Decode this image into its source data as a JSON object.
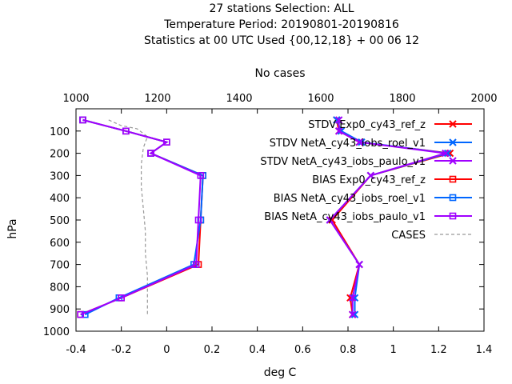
{
  "chart_data": {
    "type": "line",
    "title_lines": [
      "27 stations Selection: ALL",
      "Temperature  Period: 20190801-20190816",
      "Statistics at 00 UTC  Used {00,12,18} + 00 06 12"
    ],
    "xlabel": "deg C",
    "ylabel": "hPa",
    "x2label": "No cases",
    "xlim": [
      -0.4,
      1.4
    ],
    "x2lim": [
      1000,
      2000
    ],
    "ylim": [
      1000,
      0
    ],
    "xticks": [
      "-0.4",
      "-0.2",
      "0",
      "0.2",
      "0.4",
      "0.6",
      "0.8",
      "1",
      "1.2",
      "1.4"
    ],
    "x2ticks": [
      "1000",
      "1200",
      "1400",
      "1600",
      "1800",
      "2000"
    ],
    "yticks": [
      "100",
      "200",
      "300",
      "400",
      "500",
      "600",
      "700",
      "800",
      "900",
      "1000"
    ],
    "legend_position": "top-right",
    "series": [
      {
        "name": "STDV Exp0_cy43_ref_z",
        "color": "#ff0000",
        "marker": "x",
        "points": [
          [
            0.75,
            50
          ],
          [
            0.76,
            100
          ],
          [
            0.85,
            150
          ],
          [
            1.25,
            200
          ],
          [
            0.9,
            300
          ],
          [
            0.73,
            500
          ],
          [
            0.85,
            700
          ],
          [
            0.81,
            850
          ],
          [
            0.82,
            925
          ]
        ]
      },
      {
        "name": "STDV NetA_cy43_iobs_roel_v1",
        "color": "#0066ff",
        "marker": "x",
        "points": [
          [
            0.75,
            50
          ],
          [
            0.77,
            100
          ],
          [
            0.86,
            150
          ],
          [
            1.24,
            200
          ],
          [
            0.9,
            300
          ],
          [
            0.72,
            500
          ],
          [
            0.85,
            700
          ],
          [
            0.83,
            850
          ],
          [
            0.83,
            925
          ]
        ]
      },
      {
        "name": "STDV NetA_cy43_iobs_paulo_v1",
        "color": "#a000ff",
        "marker": "x",
        "points": [
          [
            0.76,
            50
          ],
          [
            0.76,
            100
          ],
          [
            0.85,
            150
          ],
          [
            1.23,
            200
          ],
          [
            0.9,
            300
          ],
          [
            0.72,
            500
          ],
          [
            0.85,
            700
          ],
          [
            0.82,
            850
          ],
          [
            0.82,
            925
          ]
        ]
      },
      {
        "name": "BIAS Exp0_cy43_ref_z",
        "color": "#ff0000",
        "marker": "square",
        "points": [
          [
            -0.37,
            50
          ],
          [
            -0.18,
            100
          ],
          [
            0.0,
            150
          ],
          [
            -0.07,
            200
          ],
          [
            0.16,
            300
          ],
          [
            0.15,
            500
          ],
          [
            0.14,
            700
          ],
          [
            -0.2,
            850
          ],
          [
            -0.38,
            925
          ]
        ]
      },
      {
        "name": "BIAS NetA_cy43_iobs_roel_v1",
        "color": "#0066ff",
        "marker": "square",
        "points": [
          [
            -0.37,
            50
          ],
          [
            -0.18,
            100
          ],
          [
            0.0,
            150
          ],
          [
            -0.07,
            200
          ],
          [
            0.16,
            300
          ],
          [
            0.15,
            500
          ],
          [
            0.12,
            700
          ],
          [
            -0.21,
            850
          ],
          [
            -0.36,
            925
          ]
        ]
      },
      {
        "name": "BIAS NetA_cy43_iobs_paulo_v1",
        "color": "#a000ff",
        "marker": "square",
        "points": [
          [
            -0.37,
            50
          ],
          [
            -0.18,
            100
          ],
          [
            0.0,
            150
          ],
          [
            -0.07,
            200
          ],
          [
            0.15,
            300
          ],
          [
            0.14,
            500
          ],
          [
            0.13,
            700
          ],
          [
            -0.2,
            850
          ],
          [
            -0.38,
            925
          ]
        ]
      },
      {
        "name": "CASES",
        "color": "#999999",
        "marker": "none",
        "dashed": true,
        "axis": "x2",
        "points": [
          [
            1080,
            50
          ],
          [
            1110,
            75
          ],
          [
            1150,
            90
          ],
          [
            1175,
            125
          ],
          [
            1165,
            175
          ],
          [
            1160,
            250
          ],
          [
            1160,
            350
          ],
          [
            1165,
            450
          ],
          [
            1170,
            550
          ],
          [
            1170,
            650
          ],
          [
            1175,
            750
          ],
          [
            1175,
            850
          ],
          [
            1175,
            925
          ]
        ]
      }
    ]
  }
}
